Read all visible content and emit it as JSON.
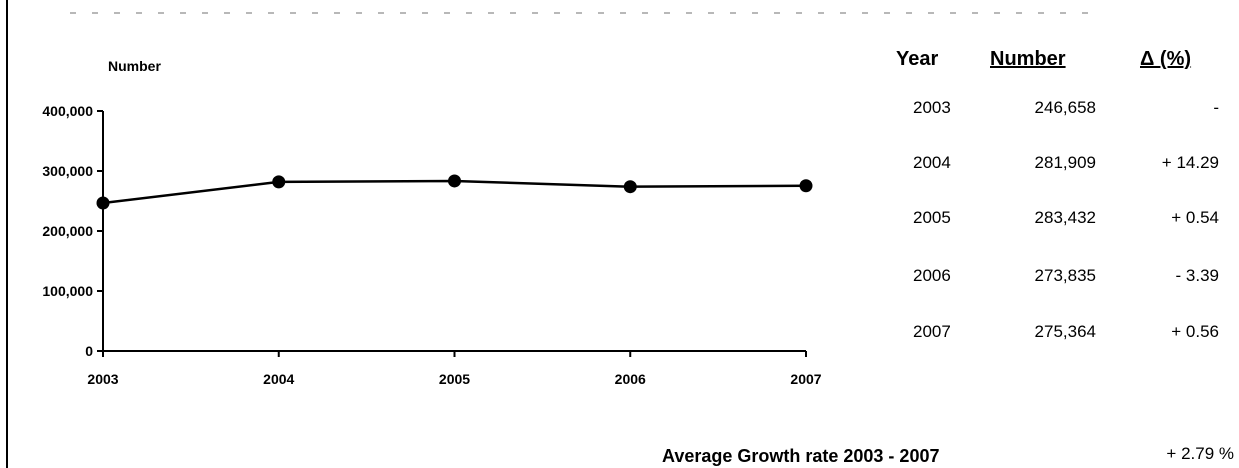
{
  "chart_data": {
    "type": "line",
    "title": "",
    "ylabel": "Number",
    "xlabel": "",
    "x": [
      "2003",
      "2004",
      "2005",
      "2006",
      "2007"
    ],
    "series": [
      {
        "values": [
          246658,
          281909,
          283432,
          273835,
          275364
        ]
      }
    ],
    "ylim": [
      0,
      400000
    ],
    "yticks": [
      "0",
      "100,000",
      "200,000",
      "300,000",
      "400,000"
    ],
    "grid": false,
    "marker": "circle",
    "line_color": "#000000"
  },
  "table": {
    "headers": {
      "year": "Year",
      "number": "Number",
      "delta": "Δ (%)"
    },
    "rows": [
      {
        "year": "2003",
        "number": "246,658",
        "delta": "-"
      },
      {
        "year": "2004",
        "number": "281,909",
        "delta": "+ 14.29"
      },
      {
        "year": "2005",
        "number": "283,432",
        "delta": "+ 0.54"
      },
      {
        "year": "2006",
        "number": "273,835",
        "delta": "- 3.39"
      },
      {
        "year": "2007",
        "number": "275,364",
        "delta": "+ 0.56"
      }
    ]
  },
  "summary": {
    "label": "Average Growth rate 2003 - 2007",
    "value": "+ 2.79 %"
  }
}
